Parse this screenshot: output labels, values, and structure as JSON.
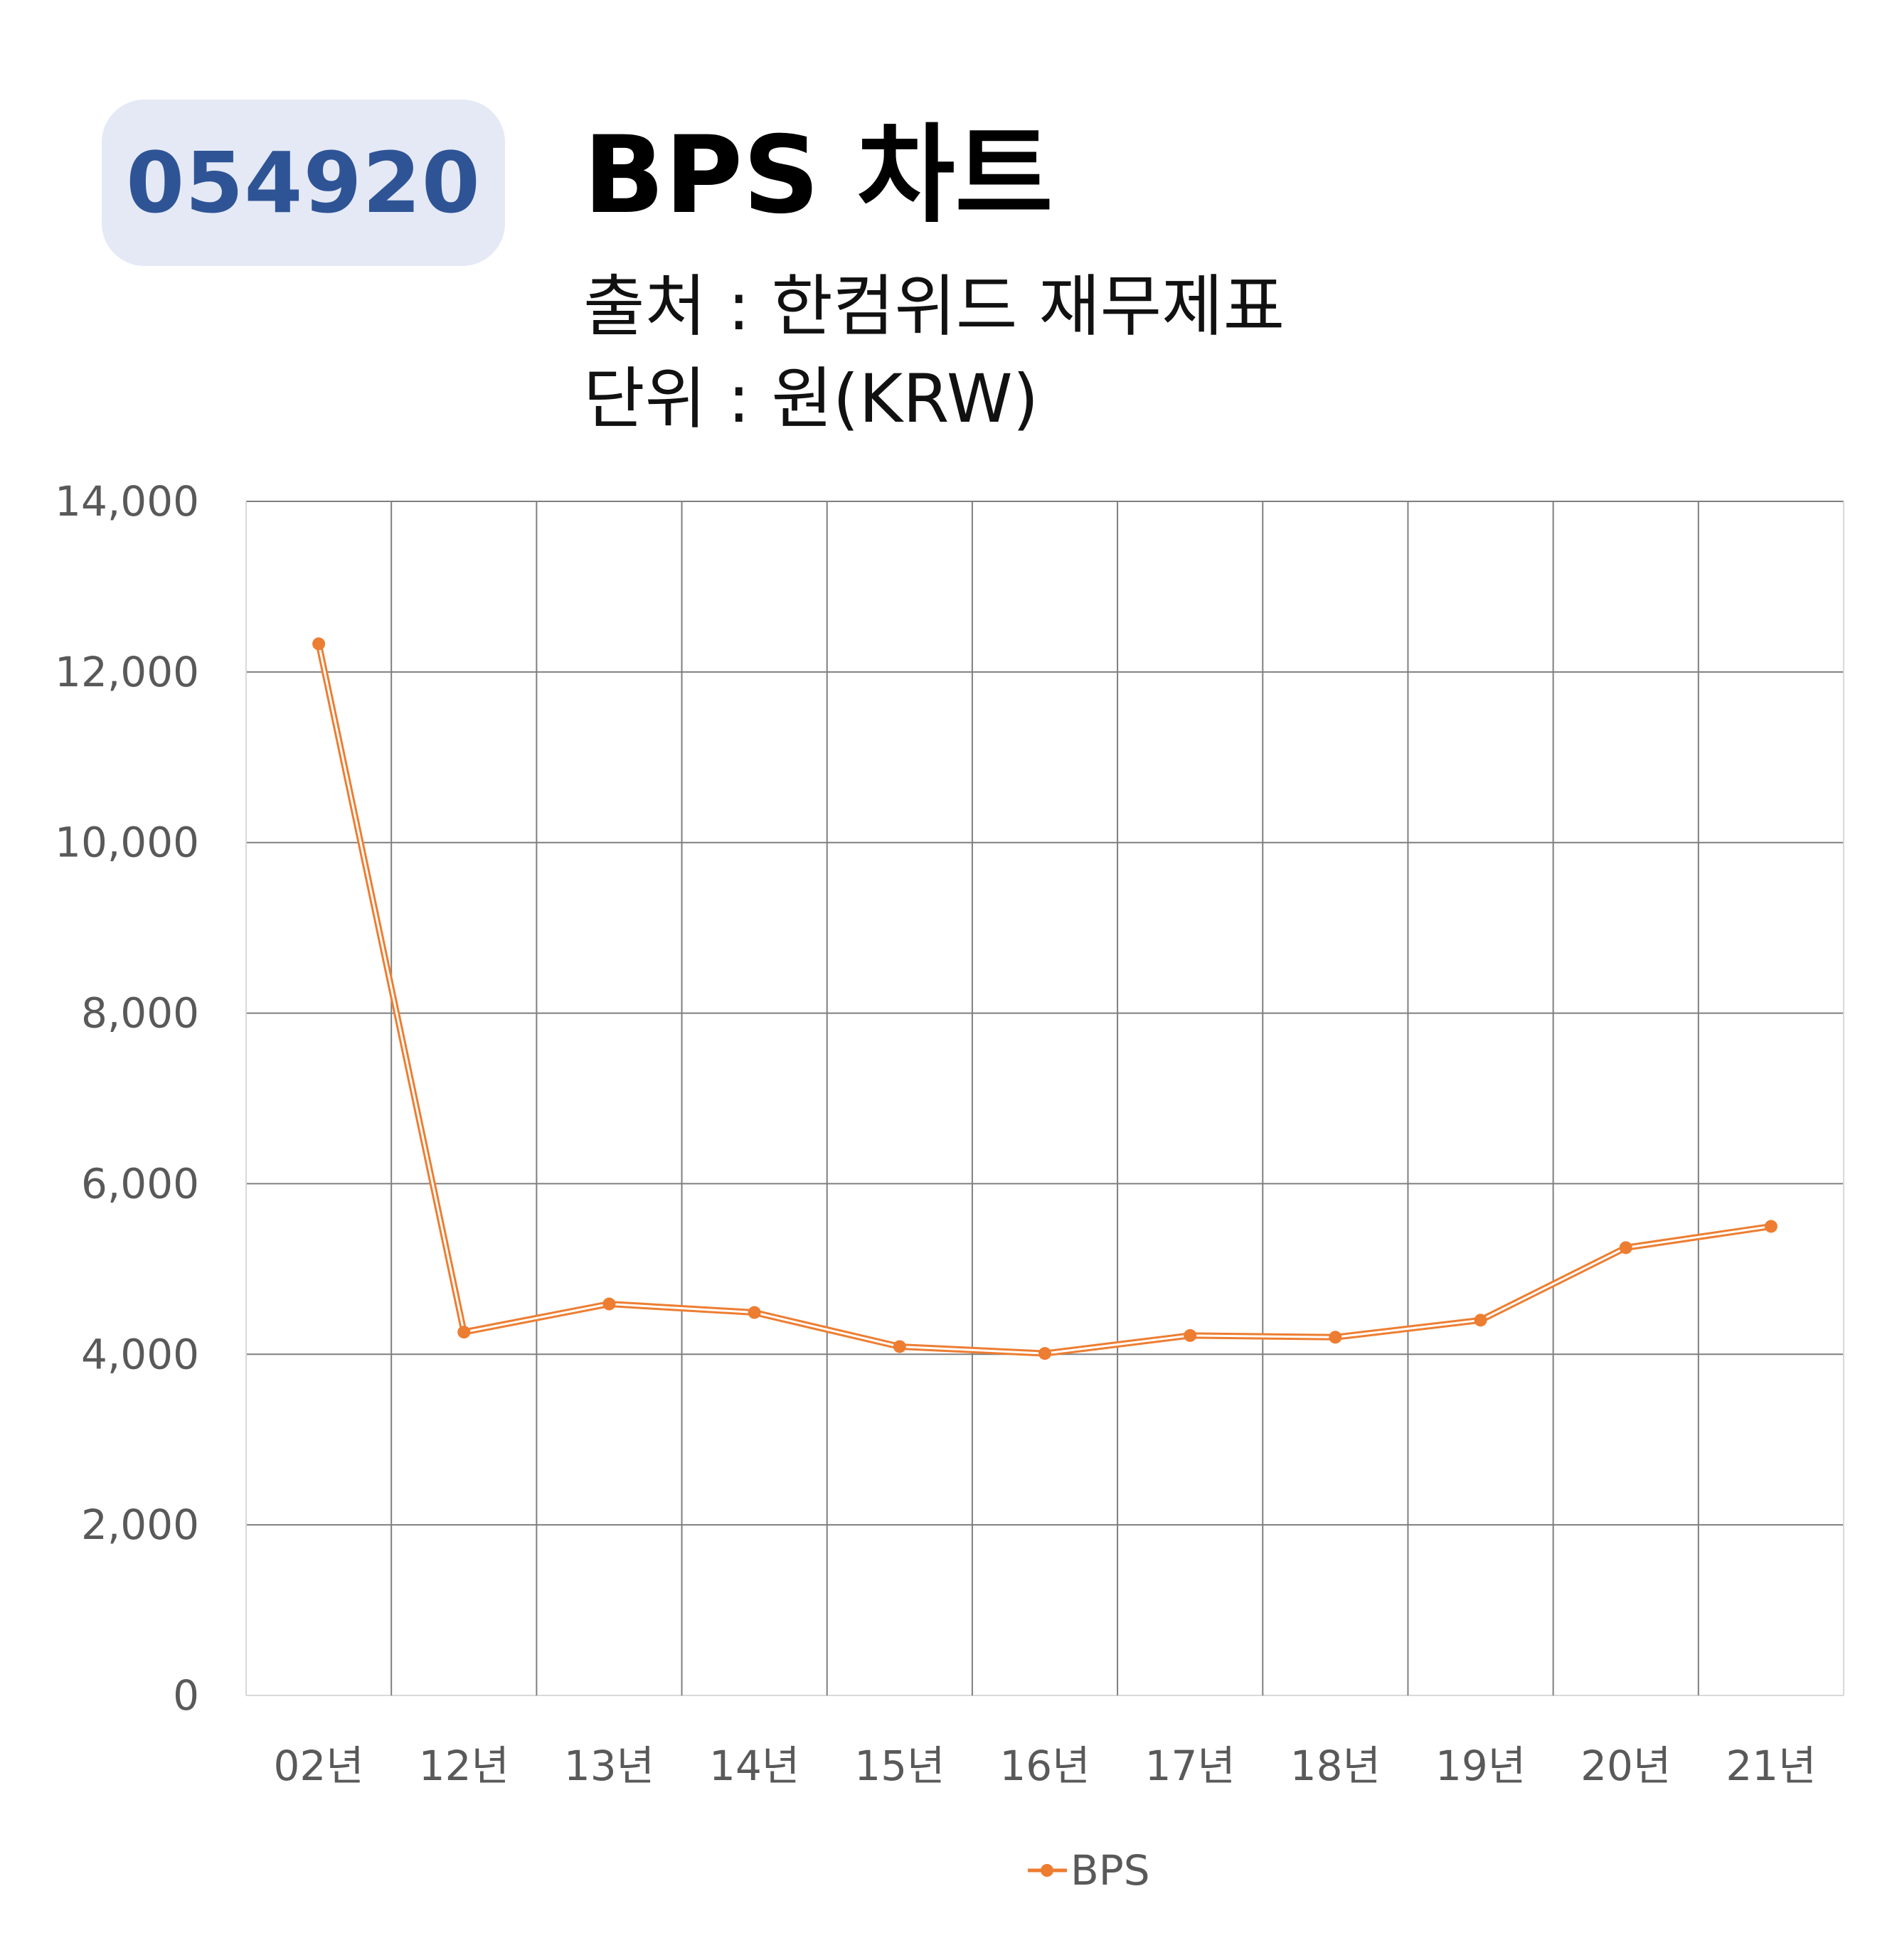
{
  "header": {
    "code": "054920",
    "title": "BPS 차트",
    "source": "출처 : 한컴위드 재무제표",
    "unit": "단위 : 원(KRW)"
  },
  "chart_data": {
    "type": "line",
    "categories": [
      "02년",
      "12년",
      "13년",
      "14년",
      "15년",
      "16년",
      "17년",
      "18년",
      "19년",
      "20년",
      "21년"
    ],
    "series": [
      {
        "name": "BPS",
        "color": "#ed7d31",
        "values": [
          12330,
          4260,
          4590,
          4490,
          4090,
          4010,
          4220,
          4200,
          4400,
          5250,
          5500
        ]
      }
    ],
    "ylim": [
      0,
      14000
    ],
    "yticks": [
      0,
      2000,
      4000,
      6000,
      8000,
      10000,
      12000,
      14000
    ],
    "ytick_labels": [
      "0",
      "2,000",
      "4,000",
      "6,000",
      "8,000",
      "10,000",
      "12,000",
      "14,000"
    ],
    "grid": true,
    "legend": "bottom",
    "gridline_color": "#7f7f7f"
  }
}
